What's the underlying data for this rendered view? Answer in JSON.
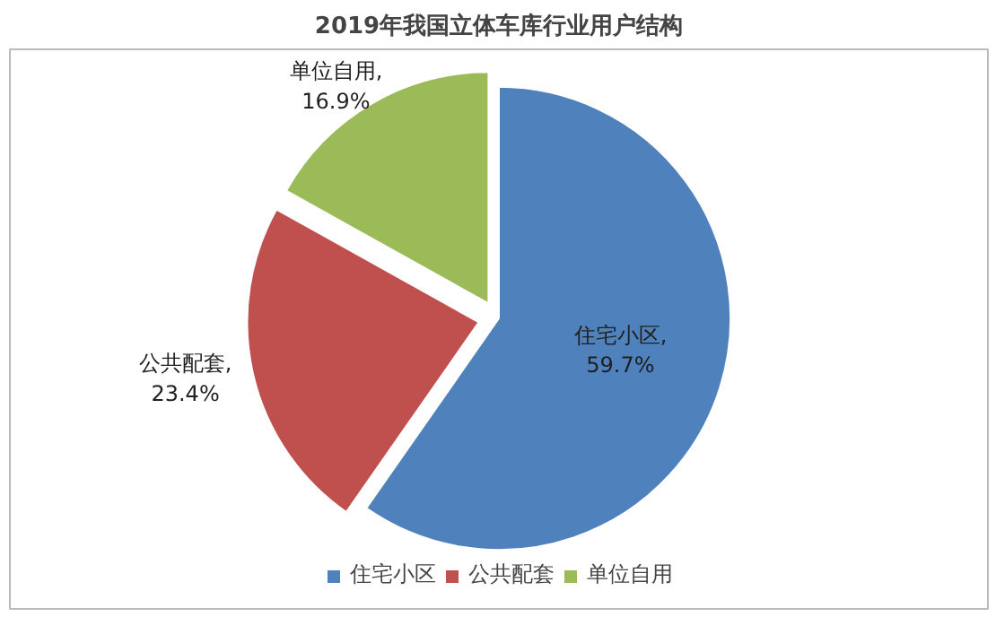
{
  "chart_data": {
    "type": "pie",
    "title": "2019年我国立体车库行业用户结构",
    "categories": [
      "住宅小区",
      "公共配套",
      "单位自用"
    ],
    "values": [
      59.7,
      23.4,
      16.9
    ],
    "colors": [
      "#4f81bd",
      "#c0504d",
      "#9bbb59"
    ],
    "value_labels": [
      "住宅小区,\n59.7%",
      "公共配套,\n23.4%",
      "单位自用,\n16.9%"
    ],
    "legend": "bottom"
  }
}
